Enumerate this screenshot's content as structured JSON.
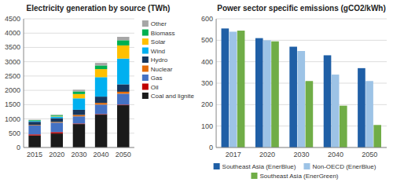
{
  "chart_data": [
    {
      "type": "bar",
      "stacked": true,
      "title": "Electricity generation by source (TWh)",
      "categories": [
        "2015",
        "2020",
        "2030",
        "2040",
        "2050"
      ],
      "series": [
        {
          "name": "Coal and lignite",
          "color": "#1a1a1a",
          "values": [
            420,
            490,
            820,
            1150,
            1480
          ]
        },
        {
          "name": "Oil",
          "color": "#c00000",
          "values": [
            40,
            50,
            20,
            20,
            20
          ]
        },
        {
          "name": "Gas",
          "color": "#4472c4",
          "values": [
            310,
            330,
            250,
            330,
            380
          ]
        },
        {
          "name": "Nuclear",
          "color": "#e36c09",
          "values": [
            20,
            25,
            50,
            60,
            70
          ]
        },
        {
          "name": "Hydro",
          "color": "#17375e",
          "values": [
            110,
            130,
            180,
            220,
            260
          ]
        },
        {
          "name": "Wind",
          "color": "#00b0f0",
          "values": [
            30,
            60,
            400,
            680,
            900
          ]
        },
        {
          "name": "Solar",
          "color": "#ffc000",
          "values": [
            10,
            20,
            150,
            280,
            460
          ]
        },
        {
          "name": "Biomass",
          "color": "#00b050",
          "values": [
            20,
            30,
            90,
            130,
            180
          ]
        },
        {
          "name": "Other",
          "color": "#a6a6a6",
          "values": [
            10,
            15,
            60,
            90,
            120
          ]
        }
      ],
      "ylim": [
        0,
        4500
      ],
      "yticks": [
        0,
        500,
        1000,
        1500,
        2000,
        2500,
        3000,
        3500,
        4000,
        4500
      ],
      "grid": true,
      "legend": "right"
    },
    {
      "type": "bar",
      "title": "Power sector specific emissions (gCO2/kWh)",
      "categories": [
        "2017",
        "2020",
        "2030",
        "2040",
        "2050"
      ],
      "series": [
        {
          "name": "Southeast Asia (EnerBlue)",
          "color": "#1f5fa6",
          "values": [
            555,
            510,
            470,
            430,
            370
          ]
        },
        {
          "name": "Non-OECD (EnerBlue)",
          "color": "#9dc3e6",
          "values": [
            540,
            500,
            450,
            340,
            310
          ]
        },
        {
          "name": "Southeast Asia (EnerGreen)",
          "color": "#70ad47",
          "values": [
            545,
            495,
            310,
            195,
            105
          ]
        }
      ],
      "ylim": [
        0,
        600
      ],
      "yticks": [
        0,
        100,
        200,
        300,
        400,
        500,
        600
      ],
      "grid": true,
      "legend": "bottom"
    }
  ]
}
